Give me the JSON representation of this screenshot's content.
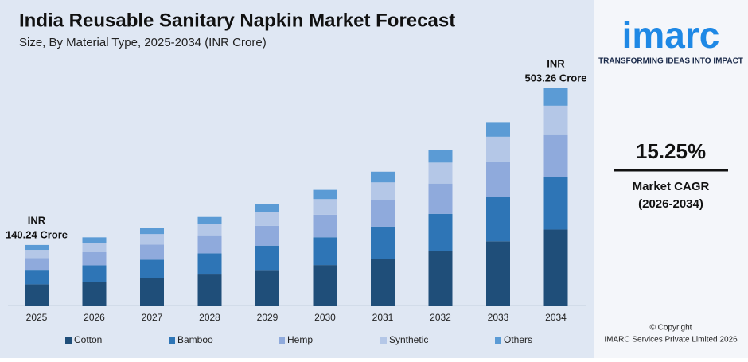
{
  "chart_data": {
    "type": "stacked-bar",
    "title": "India Reusable Sanitary Napkin Market Forecast",
    "subtitle": "Size, By Material Type, 2025-2034 (INR Crore)",
    "categories": [
      "2025",
      "2026",
      "2027",
      "2028",
      "2029",
      "2030",
      "2031",
      "2032",
      "2033",
      "2034"
    ],
    "series": [
      {
        "name": "Cotton",
        "color": "#1f4e79",
        "values": [
          49.08,
          55.3,
          63.0,
          71.8,
          82.3,
          93.8,
          108.5,
          126.0,
          148.8,
          176.14
        ]
      },
      {
        "name": "Bamboo",
        "color": "#2e75b6",
        "values": [
          33.66,
          37.9,
          43.2,
          49.2,
          56.4,
          64.3,
          74.4,
          86.4,
          102.0,
          120.78
        ]
      },
      {
        "name": "Hemp",
        "color": "#8faadc",
        "values": [
          27.35,
          30.8,
          35.1,
          40.0,
          45.8,
          52.3,
          60.5,
          70.2,
          82.9,
          98.14
        ]
      },
      {
        "name": "Synthetic",
        "color": "#b4c7e7",
        "values": [
          18.93,
          21.3,
          24.3,
          27.7,
          31.7,
          36.2,
          41.9,
          48.6,
          57.4,
          67.94
        ]
      },
      {
        "name": "Others",
        "color": "#5b9bd5",
        "values": [
          11.22,
          12.6,
          14.4,
          16.4,
          18.8,
          21.4,
          24.8,
          28.8,
          34.0,
          40.26
        ]
      }
    ],
    "start_label": [
      "INR",
      "140.24 Crore"
    ],
    "end_label": [
      "INR",
      "503.26 Crore"
    ]
  },
  "sidebar": {
    "logo": "imarc",
    "tagline": "TRANSFORMING IDEAS INTO IMPACT",
    "cagr": "15.25%",
    "cagr_label": "Market CAGR",
    "cagr_period": "(2026-2034)",
    "copyright": "© Copyright",
    "company": "IMARC Services Private Limited 2026"
  }
}
